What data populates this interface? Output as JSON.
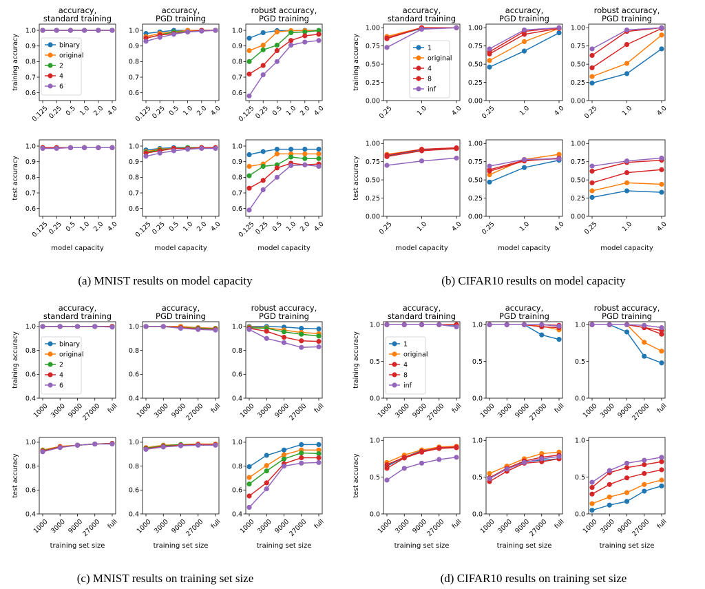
{
  "colors": {
    "binary": "#1f77b4",
    "original": "#ff7f0e",
    "2": "#2ca02c",
    "4": "#d62728",
    "6": "#9467bd",
    "1": "#1f77b4",
    "8": "#d62728",
    "inf": "#9467bd"
  },
  "captions": {
    "a": "(a) MNIST results on model capacity",
    "b": "(b) CIFAR10 results on model capacity",
    "c": "(c) MNIST results on training set size",
    "d": "(d) CIFAR10 results on training set size"
  },
  "chart_data": [
    {
      "id": "a",
      "type": "line",
      "series_names": [
        "binary",
        "original",
        "2",
        "4",
        "6"
      ],
      "legend": "inside top-left of first training-accuracy panel",
      "xlabel": "model capacity",
      "x": [
        "0.125",
        "0.25",
        "0.5",
        "1.0",
        "2.0",
        "4.0"
      ],
      "ylim": [
        0.55,
        1.04
      ],
      "yticks": [
        "0.6",
        "0.7",
        "0.8",
        "0.9",
        "1.0"
      ],
      "col_titles": [
        [
          "accuracy,",
          "standard training"
        ],
        [
          "accuracy,",
          "PGD training"
        ],
        [
          "robust accuracy,",
          "PGD training"
        ]
      ],
      "row_labels": [
        "training accuracy",
        "test accuracy"
      ],
      "panels": [
        [
          [
            [
              1.0,
              1.0,
              1.0,
              1.0,
              1.0,
              1.0
            ],
            [
              1.0,
              1.0,
              1.0,
              1.0,
              1.0,
              1.0
            ],
            [
              1.0,
              1.0,
              1.0,
              1.0,
              1.0,
              1.0
            ],
            [
              1.0,
              1.0,
              1.0,
              1.0,
              1.0,
              1.0
            ],
            [
              1.0,
              1.0,
              1.0,
              1.0,
              1.0,
              1.0
            ]
          ],
          [
            [
              0.98,
              0.99,
              1.0,
              1.0,
              1.0,
              1.0
            ],
            [
              0.96,
              0.98,
              0.99,
              1.0,
              1.0,
              1.0
            ],
            [
              0.95,
              0.97,
              0.99,
              0.99,
              1.0,
              1.0
            ],
            [
              0.95,
              0.97,
              0.98,
              0.99,
              1.0,
              1.0
            ],
            [
              0.93,
              0.955,
              0.975,
              0.99,
              0.995,
              1.0
            ]
          ],
          [
            [
              0.95,
              0.985,
              0.998,
              0.998,
              1.0,
              1.0
            ],
            [
              0.87,
              0.905,
              0.99,
              0.998,
              0.998,
              0.998
            ],
            [
              0.8,
              0.875,
              0.905,
              0.985,
              0.99,
              0.998
            ],
            [
              0.72,
              0.775,
              0.87,
              0.935,
              0.965,
              0.975
            ],
            [
              0.58,
              0.715,
              0.8,
              0.905,
              0.925,
              0.935
            ]
          ]
        ],
        [
          [
            [
              0.99,
              0.99,
              0.99,
              0.99,
              0.99,
              0.99
            ],
            [
              0.99,
              0.99,
              0.99,
              0.99,
              0.99,
              0.99
            ],
            [
              0.99,
              0.99,
              0.99,
              0.99,
              0.99,
              0.99
            ],
            [
              0.99,
              0.99,
              0.99,
              0.99,
              0.99,
              0.99
            ],
            [
              0.985,
              0.985,
              0.99,
              0.99,
              0.99,
              0.99
            ]
          ],
          [
            [
              0.975,
              0.985,
              0.99,
              0.99,
              0.99,
              0.99
            ],
            [
              0.965,
              0.98,
              0.985,
              0.99,
              0.99,
              0.99
            ],
            [
              0.96,
              0.975,
              0.985,
              0.99,
              0.99,
              0.99
            ],
            [
              0.955,
              0.97,
              0.985,
              0.985,
              0.99,
              0.99
            ],
            [
              0.935,
              0.955,
              0.97,
              0.98,
              0.985,
              0.985
            ]
          ],
          [
            [
              0.945,
              0.965,
              0.98,
              0.98,
              0.98,
              0.98
            ],
            [
              0.87,
              0.885,
              0.95,
              0.95,
              0.95,
              0.95
            ],
            [
              0.81,
              0.87,
              0.88,
              0.93,
              0.92,
              0.92
            ],
            [
              0.73,
              0.78,
              0.86,
              0.89,
              0.88,
              0.885
            ],
            [
              0.59,
              0.72,
              0.8,
              0.875,
              0.88,
              0.87
            ]
          ]
        ]
      ]
    },
    {
      "id": "b",
      "type": "line",
      "series_names": [
        "1",
        "original",
        "4",
        "8",
        "inf"
      ],
      "legend": "inside center of first training-accuracy panel",
      "xlabel": "model capacity",
      "x": [
        "0.25",
        "1.0",
        "4.0"
      ],
      "ylim": [
        0.0,
        1.05
      ],
      "yticks": [
        "0.00",
        "0.25",
        "0.50",
        "0.75",
        "1.00"
      ],
      "col_titles": [
        [
          "accuracy,",
          "standard training"
        ],
        [
          "accuracy,",
          "PGD training"
        ],
        [
          "robust accuracy,",
          "PGD training"
        ]
      ],
      "row_labels": [
        "training accuracy",
        "test accuracy"
      ],
      "panels": [
        [
          [
            [
              0.86,
              0.99,
              1.0
            ],
            [
              0.88,
              1.0,
              1.0
            ],
            [
              0.86,
              1.0,
              1.0
            ],
            [
              0.85,
              1.0,
              1.0
            ],
            [
              0.73,
              0.98,
              1.0
            ]
          ],
          [
            [
              0.46,
              0.68,
              0.93
            ],
            [
              0.55,
              0.81,
              0.99
            ],
            [
              0.64,
              0.91,
              0.99
            ],
            [
              0.67,
              0.95,
              1.0
            ],
            [
              0.71,
              0.97,
              1.0
            ]
          ],
          [
            [
              0.24,
              0.37,
              0.71
            ],
            [
              0.33,
              0.51,
              0.9
            ],
            [
              0.45,
              0.77,
              0.99
            ],
            [
              0.62,
              0.95,
              1.0
            ],
            [
              0.71,
              0.97,
              1.0
            ]
          ]
        ],
        [
          [
            [
              0.83,
              0.91,
              0.93
            ],
            [
              0.85,
              0.92,
              0.94
            ],
            [
              0.84,
              0.92,
              0.94
            ],
            [
              0.82,
              0.9,
              0.93
            ],
            [
              0.7,
              0.76,
              0.8
            ]
          ],
          [
            [
              0.47,
              0.67,
              0.77
            ],
            [
              0.57,
              0.78,
              0.85
            ],
            [
              0.62,
              0.76,
              0.8
            ],
            [
              0.64,
              0.77,
              0.79
            ],
            [
              0.69,
              0.78,
              0.79
            ]
          ],
          [
            [
              0.26,
              0.35,
              0.33
            ],
            [
              0.35,
              0.46,
              0.44
            ],
            [
              0.46,
              0.6,
              0.64
            ],
            [
              0.62,
              0.74,
              0.77
            ],
            [
              0.69,
              0.76,
              0.8
            ]
          ]
        ]
      ]
    },
    {
      "id": "c",
      "type": "line",
      "series_names": [
        "binary",
        "original",
        "2",
        "4",
        "6"
      ],
      "legend": "inside center of first training-accuracy panel",
      "xlabel": "training set size",
      "x": [
        "1000",
        "3000",
        "9000",
        "27000",
        "full"
      ],
      "ylim": [
        0.4,
        1.04
      ],
      "yticks": [
        "0.4",
        "0.6",
        "0.8",
        "1.0"
      ],
      "col_titles": [
        [
          "accuracy,",
          "standard training"
        ],
        [
          "accuracy,",
          "PGD training"
        ],
        [
          "robust accuracy,",
          "PGD training"
        ]
      ],
      "row_labels": [
        "training accuracy",
        "test accuracy"
      ],
      "panels": [
        [
          [
            [
              1.0,
              1.0,
              1.0,
              1.0,
              1.0
            ],
            [
              1.0,
              1.0,
              1.0,
              1.0,
              1.0
            ],
            [
              1.0,
              1.0,
              1.0,
              1.0,
              1.0
            ],
            [
              1.0,
              1.0,
              1.0,
              1.0,
              1.0
            ],
            [
              1.0,
              1.0,
              1.0,
              1.0,
              0.995
            ]
          ],
          [
            [
              1.0,
              1.0,
              1.0,
              0.99,
              0.985
            ],
            [
              1.0,
              1.0,
              1.0,
              0.99,
              0.985
            ],
            [
              1.0,
              1.0,
              0.99,
              0.985,
              0.98
            ],
            [
              1.0,
              1.0,
              0.99,
              0.98,
              0.975
            ],
            [
              1.0,
              1.0,
              0.985,
              0.975,
              0.97
            ]
          ],
          [
            [
              1.0,
              1.0,
              0.995,
              0.985,
              0.98
            ],
            [
              0.995,
              0.99,
              0.97,
              0.95,
              0.94
            ],
            [
              0.99,
              0.985,
              0.955,
              0.935,
              0.92
            ],
            [
              0.985,
              0.96,
              0.91,
              0.88,
              0.875
            ],
            [
              0.975,
              0.9,
              0.865,
              0.825,
              0.83
            ]
          ]
        ],
        [
          [
            [
              0.93,
              0.96,
              0.975,
              0.985,
              0.99
            ],
            [
              0.935,
              0.965,
              0.975,
              0.985,
              0.99
            ],
            [
              0.93,
              0.96,
              0.975,
              0.985,
              0.99
            ],
            [
              0.925,
              0.96,
              0.975,
              0.985,
              0.99
            ],
            [
              0.92,
              0.955,
              0.975,
              0.985,
              0.985
            ]
          ],
          [
            [
              0.95,
              0.97,
              0.975,
              0.98,
              0.98
            ],
            [
              0.955,
              0.975,
              0.98,
              0.985,
              0.985
            ],
            [
              0.95,
              0.97,
              0.98,
              0.98,
              0.98
            ],
            [
              0.945,
              0.965,
              0.975,
              0.98,
              0.98
            ],
            [
              0.94,
              0.96,
              0.97,
              0.975,
              0.975
            ]
          ],
          [
            [
              0.795,
              0.89,
              0.935,
              0.98,
              0.98
            ],
            [
              0.705,
              0.805,
              0.895,
              0.935,
              0.935
            ],
            [
              0.65,
              0.76,
              0.86,
              0.91,
              0.905
            ],
            [
              0.55,
              0.66,
              0.82,
              0.87,
              0.87
            ],
            [
              0.455,
              0.61,
              0.8,
              0.825,
              0.83
            ]
          ]
        ]
      ]
    },
    {
      "id": "d",
      "type": "line",
      "series_names": [
        "1",
        "original",
        "4",
        "8",
        "inf"
      ],
      "legend": "inside center-left of first training-accuracy panel",
      "xlabel": "training set size",
      "x": [
        "1000",
        "3000",
        "9000",
        "27000",
        "full"
      ],
      "ylim": [
        0.0,
        1.04
      ],
      "yticks": [
        "0.0",
        "0.5",
        "1.0"
      ],
      "col_titles": [
        [
          "accuracy,",
          "standard training"
        ],
        [
          "accuracy,",
          "PGD training"
        ],
        [
          "robust accuracy,",
          "PGD training"
        ]
      ],
      "row_labels": [
        "training accuracy",
        "test accuracy"
      ],
      "panels": [
        [
          [
            [
              1.0,
              1.0,
              1.0,
              1.0,
              0.99
            ],
            [
              1.0,
              1.0,
              1.0,
              1.0,
              1.0
            ],
            [
              1.0,
              1.0,
              1.0,
              1.0,
              1.0
            ],
            [
              1.0,
              1.0,
              1.0,
              1.0,
              1.0
            ],
            [
              1.0,
              1.0,
              1.0,
              1.0,
              0.97
            ]
          ],
          [
            [
              1.0,
              1.0,
              1.0,
              0.86,
              0.8
            ],
            [
              1.0,
              1.0,
              1.0,
              0.98,
              0.93
            ],
            [
              1.0,
              1.0,
              1.0,
              1.0,
              0.99
            ],
            [
              1.0,
              1.0,
              1.0,
              0.97,
              0.96
            ],
            [
              1.0,
              1.0,
              1.0,
              1.0,
              0.98
            ]
          ],
          [
            [
              1.0,
              1.0,
              0.9,
              0.57,
              0.48
            ],
            [
              1.0,
              1.0,
              1.0,
              0.76,
              0.64
            ],
            [
              1.0,
              1.0,
              1.0,
              0.96,
              0.87
            ],
            [
              1.0,
              1.0,
              1.0,
              0.96,
              0.92
            ],
            [
              1.0,
              1.0,
              1.0,
              0.99,
              0.96
            ]
          ]
        ],
        [
          [
            [
              0.65,
              0.77,
              0.86,
              0.89,
              0.91
            ],
            [
              0.7,
              0.8,
              0.87,
              0.91,
              0.92
            ],
            [
              0.67,
              0.77,
              0.85,
              0.9,
              0.91
            ],
            [
              0.62,
              0.76,
              0.84,
              0.89,
              0.9
            ],
            [
              0.46,
              0.62,
              0.69,
              0.74,
              0.77
            ]
          ],
          [
            [
              0.49,
              0.62,
              0.71,
              0.73,
              0.75
            ],
            [
              0.55,
              0.65,
              0.75,
              0.82,
              0.84
            ],
            [
              0.49,
              0.62,
              0.72,
              0.77,
              0.8
            ],
            [
              0.44,
              0.58,
              0.69,
              0.71,
              0.75
            ],
            [
              0.48,
              0.61,
              0.7,
              0.75,
              0.78
            ]
          ],
          [
            [
              0.05,
              0.12,
              0.17,
              0.31,
              0.38
            ],
            [
              0.14,
              0.23,
              0.29,
              0.4,
              0.46
            ],
            [
              0.27,
              0.4,
              0.49,
              0.55,
              0.6
            ],
            [
              0.36,
              0.56,
              0.63,
              0.67,
              0.71
            ],
            [
              0.43,
              0.59,
              0.69,
              0.73,
              0.77
            ]
          ]
        ]
      ]
    }
  ]
}
